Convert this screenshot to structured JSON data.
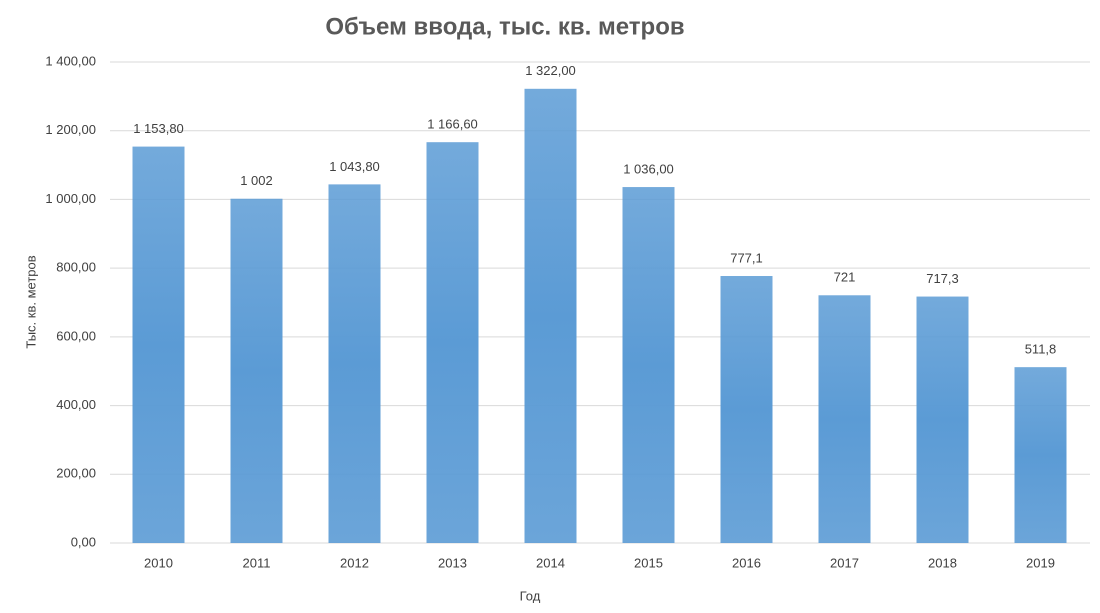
{
  "chart_data": {
    "type": "bar",
    "title": "Объем ввода, тыс. кв. метров",
    "x_label": "Год",
    "y_label": "Тыс. кв. метров",
    "categories": [
      "2010",
      "2011",
      "2012",
      "2013",
      "2014",
      "2015",
      "2016",
      "2017",
      "2018",
      "2019"
    ],
    "values": [
      1153.8,
      1002,
      1043.8,
      1166.6,
      1322,
      1036,
      777.1,
      721,
      717.3,
      511.8
    ],
    "value_labels": [
      "1 153,80",
      "1 002",
      "1 043,80",
      "1 166,60",
      "1 322,00",
      "1 036,00",
      "777,1",
      "721",
      "717,3",
      "511,8"
    ],
    "color": "#5b9bd5",
    "ylim": [
      0,
      1400
    ],
    "yticks": [
      {
        "value": 0,
        "label": "0,00"
      },
      {
        "value": 200,
        "label": "200,00"
      },
      {
        "value": 400,
        "label": "400,00"
      },
      {
        "value": 600,
        "label": "600,00"
      },
      {
        "value": 800,
        "label": "800,00"
      },
      {
        "value": 1000,
        "label": "1 000,00"
      },
      {
        "value": 1200,
        "label": "1 200,00"
      },
      {
        "value": 1400,
        "label": "1 400,00"
      }
    ],
    "grid": true
  }
}
